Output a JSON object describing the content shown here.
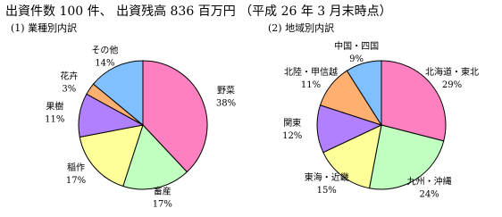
{
  "title": "出資件数 100 件、 出資残高 836 百万円 （平成 26 年 3 月末時点）",
  "chart_data": [
    {
      "type": "pie",
      "title": "(1) 業種別内訳",
      "categories": [
        "野菜",
        "畜産",
        "稲作",
        "果樹",
        "花卉",
        "その他"
      ],
      "values": [
        38,
        17,
        17,
        11,
        3,
        14
      ],
      "value_labels": [
        "38%",
        "17%",
        "17%",
        "11%",
        "3%",
        "14%"
      ],
      "colors": [
        "#ff80c0",
        "#c0ffc0",
        "#ffff99",
        "#b080ff",
        "#ffb070",
        "#80c0ff"
      ]
    },
    {
      "type": "pie",
      "title": "(2) 地域別内訳",
      "categories": [
        "北海道・東北",
        "九州・沖縄",
        "東海・近畿",
        "関東",
        "北陸・甲信越",
        "中国・四国"
      ],
      "values": [
        29,
        24,
        15,
        12,
        11,
        9
      ],
      "value_labels": [
        "29%",
        "24%",
        "15%",
        "12%",
        "11%",
        "9%"
      ],
      "colors": [
        "#ff80c0",
        "#c0ffc0",
        "#ffff99",
        "#b080ff",
        "#ffb070",
        "#80c0ff"
      ]
    }
  ]
}
